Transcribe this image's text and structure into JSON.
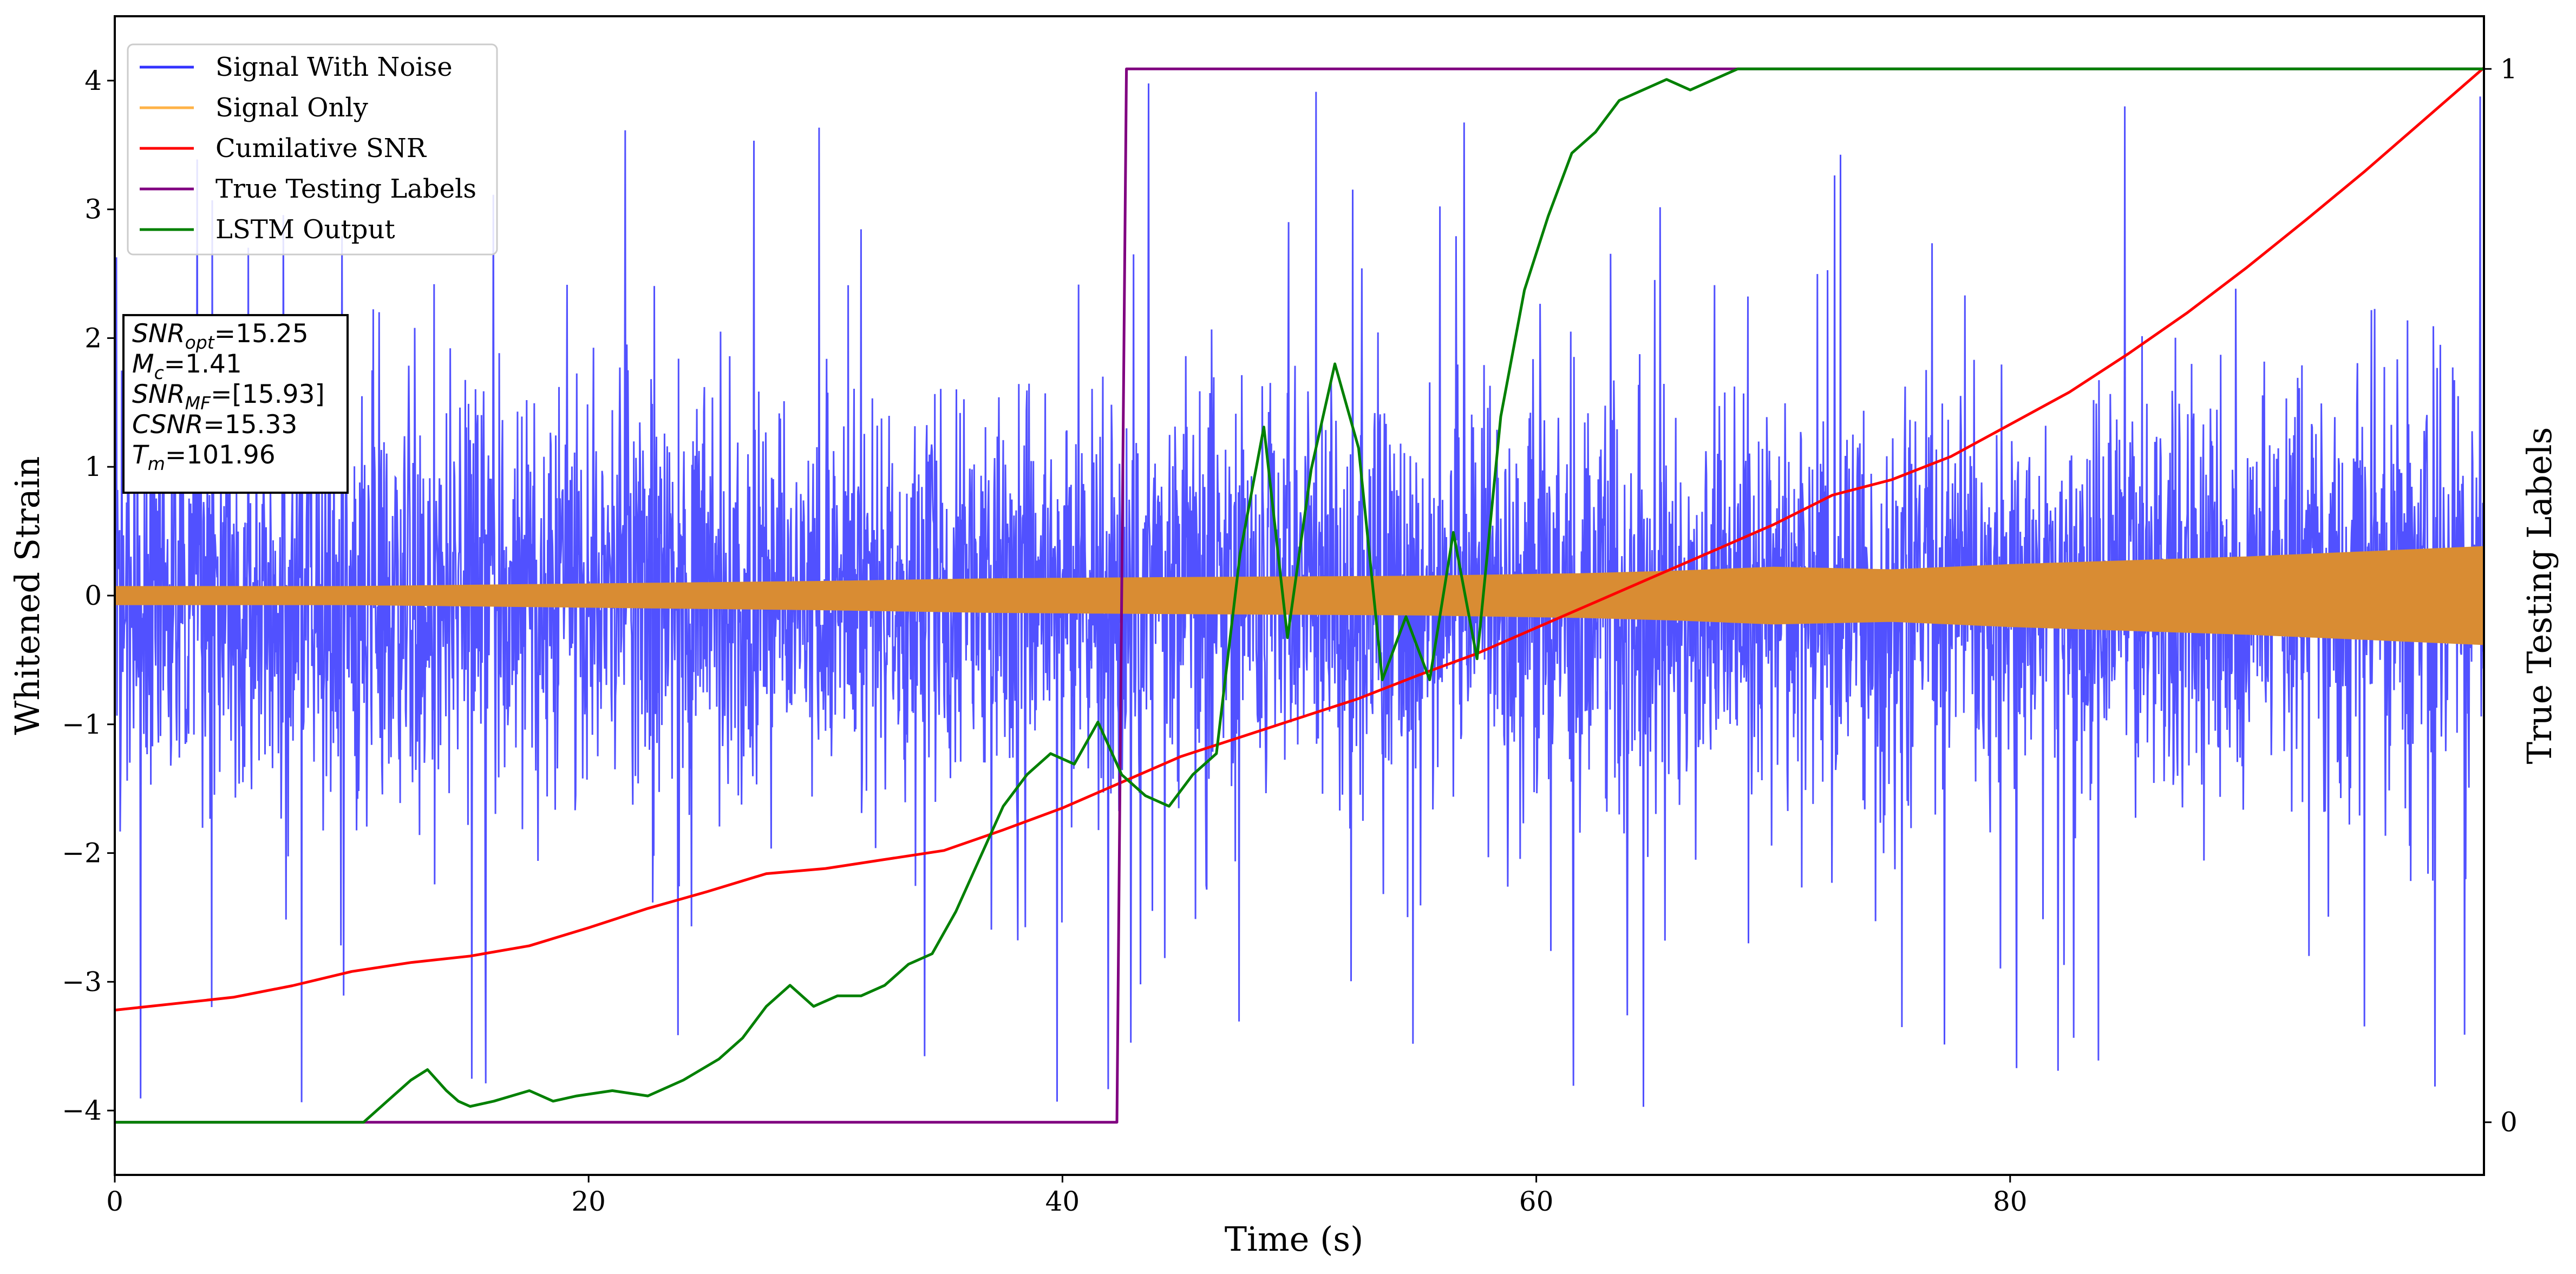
{
  "chart_data": {
    "type": "line",
    "xlabel": "Time (s)",
    "ylabel": "Whitened Strain",
    "y2label": "True Testing Labels",
    "xlim": [
      0,
      100
    ],
    "ylim": [
      -4.5,
      4.5
    ],
    "y2lim": [
      -0.05,
      1.05
    ],
    "xticks": [
      0,
      20,
      40,
      60,
      80
    ],
    "yticks": [
      -4,
      -3,
      -2,
      -1,
      0,
      1,
      2,
      3,
      4
    ],
    "y2ticks": [
      0,
      1
    ],
    "grid": false,
    "legend_position": "top-left",
    "legend": [
      {
        "label": "Signal With Noise",
        "color": "#3333ff"
      },
      {
        "label": "Signal Only",
        "color": "#ffb347"
      },
      {
        "label": "Cumilative SNR",
        "color": "#ff0000"
      },
      {
        "label": "True Testing Labels",
        "color": "#800080"
      },
      {
        "label": "LSTM Output",
        "color": "#008000"
      }
    ],
    "annotations": [
      "SNR_opt=15.25",
      "M_c=1.41",
      "SNR_MF=[15.93]",
      "CSNR=15.33",
      "T_m=101.96"
    ],
    "series": [
      {
        "name": "Signal With Noise",
        "color": "#3333ff",
        "axis": "left",
        "style": "noise",
        "x_range": [
          0,
          100
        ],
        "typical_range": [
          -1.6,
          1.6
        ],
        "extreme_range": [
          -4.1,
          4.0
        ]
      },
      {
        "name": "Signal Only",
        "color": "#d98c33",
        "axis": "left",
        "style": "envelope",
        "x": [
          0,
          10,
          20,
          30,
          37,
          45,
          55,
          62,
          66,
          70,
          75,
          80,
          85,
          90,
          95,
          100
        ],
        "amplitude": [
          0.07,
          0.07,
          0.09,
          0.11,
          0.13,
          0.14,
          0.15,
          0.17,
          0.19,
          0.22,
          0.2,
          0.24,
          0.27,
          0.3,
          0.34,
          0.38
        ]
      },
      {
        "name": "Cumilative SNR",
        "color": "#ff0000",
        "axis": "left",
        "x": [
          0,
          2.5,
          5,
          7.5,
          10,
          12.5,
          15,
          17.5,
          20,
          22.5,
          25,
          27.5,
          30,
          32.5,
          35,
          37.5,
          40,
          42.5,
          45,
          47.5,
          50,
          52.5,
          55,
          57.5,
          60,
          62.5,
          65,
          67.5,
          70,
          72.5,
          75,
          77.5,
          80,
          82.5,
          85,
          87.5,
          90,
          92.5,
          95,
          97.5,
          100
        ],
        "y": [
          -3.22,
          -3.17,
          -3.12,
          -3.03,
          -2.92,
          -2.85,
          -2.8,
          -2.72,
          -2.58,
          -2.43,
          -2.3,
          -2.16,
          -2.12,
          -2.05,
          -1.98,
          -1.82,
          -1.65,
          -1.45,
          -1.25,
          -1.1,
          -0.95,
          -0.8,
          -0.62,
          -0.45,
          -0.25,
          -0.05,
          0.15,
          0.35,
          0.55,
          0.78,
          0.9,
          1.08,
          1.33,
          1.58,
          1.88,
          2.2,
          2.55,
          2.92,
          3.3,
          3.7,
          4.1
        ]
      },
      {
        "name": "True Testing Labels",
        "color": "#800080",
        "axis": "right",
        "x": [
          0,
          42.3,
          42.7,
          100
        ],
        "y": [
          0,
          0,
          1,
          1
        ]
      },
      {
        "name": "LSTM Output",
        "color": "#008000",
        "axis": "right",
        "x": [
          0,
          10.5,
          11.5,
          12.5,
          13.2,
          14,
          14.5,
          15,
          16,
          17.5,
          18.5,
          19.5,
          21,
          22.5,
          24,
          25.5,
          26.5,
          27.5,
          28.5,
          29.5,
          30.5,
          31.5,
          32.5,
          33.5,
          34.5,
          35.5,
          36.5,
          37.5,
          38.5,
          39.5,
          40.5,
          41.5,
          42.5,
          43.5,
          44.5,
          45.5,
          46.5,
          47.5,
          48.5,
          49.5,
          50.5,
          51.5,
          52.5,
          53.5,
          54.5,
          55.5,
          56.5,
          57.5,
          58.5,
          59.5,
          60.5,
          61.5,
          62.5,
          63.5,
          64.5,
          65.5,
          66.5,
          67.5,
          68.5,
          70,
          72,
          80,
          100
        ],
        "y": [
          0,
          0,
          0.02,
          0.04,
          0.05,
          0.03,
          0.02,
          0.015,
          0.02,
          0.03,
          0.02,
          0.025,
          0.03,
          0.025,
          0.04,
          0.06,
          0.08,
          0.11,
          0.13,
          0.11,
          0.12,
          0.12,
          0.13,
          0.15,
          0.16,
          0.2,
          0.25,
          0.3,
          0.33,
          0.35,
          0.34,
          0.38,
          0.33,
          0.31,
          0.3,
          0.33,
          0.35,
          0.54,
          0.66,
          0.46,
          0.62,
          0.72,
          0.64,
          0.42,
          0.48,
          0.42,
          0.56,
          0.44,
          0.67,
          0.79,
          0.86,
          0.92,
          0.94,
          0.97,
          0.98,
          0.99,
          0.98,
          0.99,
          1,
          1,
          1,
          1,
          1
        ]
      }
    ]
  }
}
